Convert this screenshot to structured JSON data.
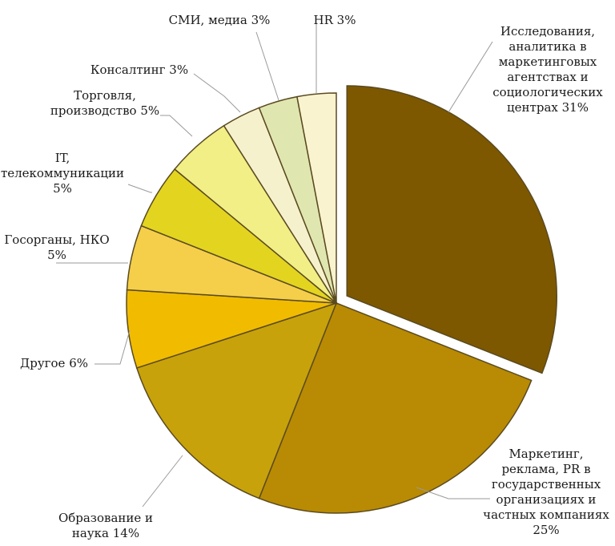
{
  "chart_data": {
    "type": "pie",
    "slices": [
      {
        "label": "Исследования, аналитика в маркетинговых агентствах и социологических центрах 31%",
        "value": 31,
        "color": "#7d5800",
        "exploded": true
      },
      {
        "label": "Маркетинг, реклама, PR в государственных организациях и частных компаниях 25%",
        "value": 25,
        "color": "#b98a03"
      },
      {
        "label": "Образование и наука 14%",
        "value": 14,
        "color": "#c8a20a"
      },
      {
        "label": "Другое 6%",
        "value": 6,
        "color": "#f1bc00"
      },
      {
        "label": "Госорганы, НКО 5%",
        "value": 5,
        "color": "#f5cf4a"
      },
      {
        "label": "IT, телекоммуникации 5%",
        "value": 5,
        "color": "#e3d420"
      },
      {
        "label": "Торговля, производство 5%",
        "value": 5,
        "color": "#f1ef86"
      },
      {
        "label": "Консалтинг 3%",
        "value": 3,
        "color": "#f6f1cd"
      },
      {
        "label": "СМИ, медиа 3%",
        "value": 3,
        "color": "#e0e6b0"
      },
      {
        "label": "HR 3%",
        "value": 3,
        "color": "#faf3cf"
      }
    ],
    "labels": {
      "research": "Исследования,\nаналитика в\nмаркетинговых\nагентствах и\nсоциологических\nцентрах 31%",
      "marketing": "Маркетинг,\nреклама, PR в\nгосударственных\nорганизациях и\nчастных компаниях\n25%",
      "education": "Образование и\nнаука 14%",
      "other": "Другое 6%",
      "government": "Госорганы, НКО\n5%",
      "it": "IT,\nтелекоммуникации\n5%",
      "trade": "Торговля,\nпроизводство 5%",
      "consulting": "Консалтинг 3%",
      "media": "СМИ, медиа 3%",
      "hr": "HR 3%"
    },
    "legend": "none",
    "stroke_color": "#5a4a20"
  }
}
